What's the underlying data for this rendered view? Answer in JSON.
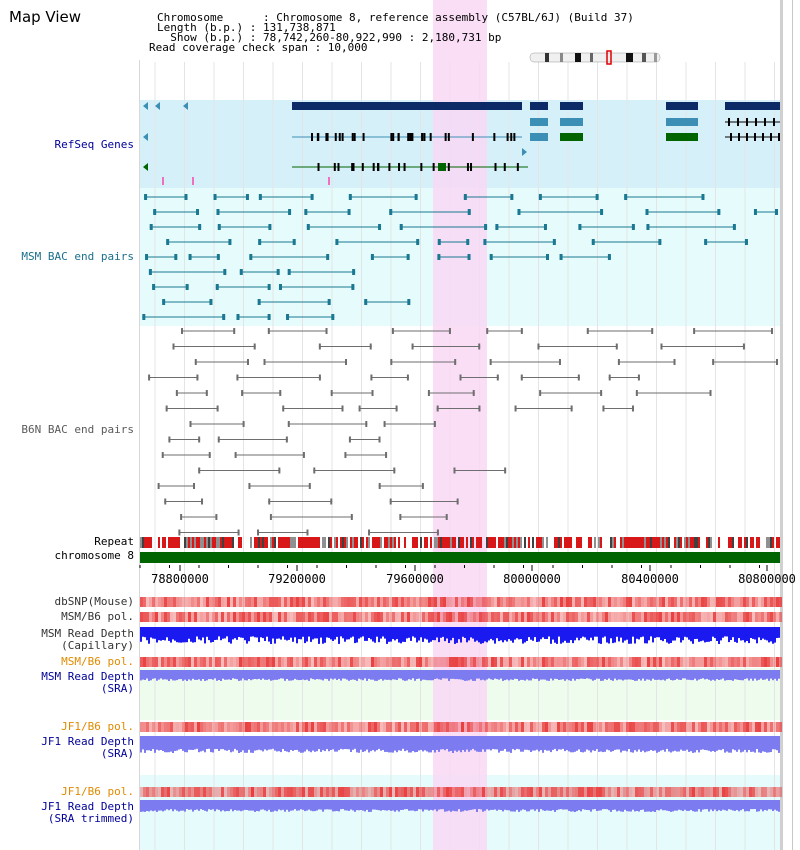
{
  "page": {
    "title": "Map View"
  },
  "info": {
    "chromosome": "Chromosome      : Chromosome 8, reference assembly (C57BL/6J) (Build 37)",
    "length": "Length (b.p.) : 131,738,871",
    "show": "  Show (b.p.) : 78,742,260-80,922,990 : 2,180,731 bp",
    "coverage": "Read coverage check span : 10,000"
  },
  "colors": {
    "highlight": "#f8d8f4",
    "refseq_bg": "#d6f0fa",
    "bac_bg": "#e6fbfb",
    "sra_bg": "#eefcee",
    "gene_dark": "#0c2a66",
    "gene_mid": "#3c8fb4",
    "gene_green": "#006400",
    "msm_pair": "#1a7892",
    "b6n_pair": "#6e6e6e",
    "chromosome_bar": "#006400",
    "depth_blue": "#1a1af0",
    "depth_light": "#7c7cf0",
    "pol_red": "#e84040",
    "label_blue": "#000099",
    "label_orange": "#e08a00",
    "label_teal": "#1a6f8c"
  },
  "labels": {
    "refseq": "RefSeq Genes",
    "msm_bac": "MSM BAC end pairs",
    "b6n_bac": "B6N BAC end pairs",
    "repeat": "Repeat",
    "chromosome": "chromosome 8",
    "dbsnp": "dbSNP(Mouse)",
    "msm_pol": "MSM/B6 pol.",
    "msm_depth_cap_1": "MSM Read Depth",
    "msm_depth_cap_2": "(Capillary)",
    "msm_pol2": "MSM/B6 pol.",
    "msm_sra_1": "MSM Read Depth",
    "msm_sra_2": "(SRA)",
    "jf1_pol": "JF1/B6 pol.",
    "jf1_sra_1": "JF1 Read Depth",
    "jf1_sra_2": "(SRA)",
    "jf1_pol2": "JF1/B6 pol.",
    "jf1_trim_1": "JF1 Read Depth",
    "jf1_trim_2": "(SRA trimmed)"
  },
  "axis": {
    "ticks": [
      "78800000",
      "79200000",
      "79600000",
      "80000000",
      "80400000",
      "80800000"
    ]
  }
}
